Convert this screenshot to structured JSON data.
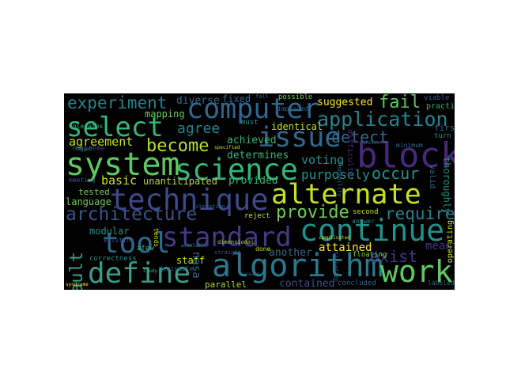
{
  "words": {
    "computer": {
      "text": "computer",
      "color": "#31688e"
    },
    "system": {
      "text": "system",
      "color": "#5ec962"
    },
    "science": {
      "text": "science",
      "color": "#35b779"
    },
    "block": {
      "text": "block",
      "color": "#482878"
    },
    "technique": {
      "text": "technique",
      "color": "#3e4989"
    },
    "alternate": {
      "text": "alternate",
      "color": "#c8e020"
    },
    "standard": {
      "text": "standard",
      "color": "#443983"
    },
    "continue": {
      "text": "continue",
      "color": "#21918c"
    },
    "tool": {
      "text": "tool",
      "color": "#31688e"
    },
    "define": {
      "text": "define",
      "color": "#3b9c8a"
    },
    "algorithm": {
      "text": "algorithm",
      "color": "#2a788e"
    },
    "work": {
      "text": "work",
      "color": "#5ec962"
    },
    "issue": {
      "text": "issue",
      "color": "#31688e"
    },
    "select": {
      "text": "select",
      "color": "#35b779"
    },
    "application": {
      "text": "application",
      "color": "#26828e"
    },
    "experiment": {
      "text": "experiment",
      "color": "#26828e"
    },
    "fail": {
      "text": "fail",
      "color": "#5ec962"
    },
    "become": {
      "text": "become",
      "color": "#b5de2b"
    },
    "architecture": {
      "text": "architecture",
      "color": "#3b528b"
    },
    "provide": {
      "text": "provide",
      "color": "#6ece58"
    },
    "require": {
      "text": "require",
      "color": "#26828e"
    },
    "fault": {
      "text": "fault",
      "color": "#3b9c8a"
    },
    "exist": {
      "text": "exist",
      "color": "#443983"
    },
    "detect": {
      "text": "detect",
      "color": "#31688e"
    },
    "occur": {
      "text": "occur",
      "color": "#21918c"
    },
    "agree": {
      "text": "agree",
      "color": "#26828e"
    },
    "agreement": {
      "text": "agreement",
      "color": "#c8e020"
    },
    "diverse": {
      "text": "diverse",
      "color": "#31688e"
    },
    "fixed": {
      "text": "fixed",
      "color": "#31688e"
    },
    "suggested": {
      "text": "suggested",
      "color": "#fde725"
    },
    "mapping": {
      "text": "mapping",
      "color": "#6ece58"
    },
    "achieved": {
      "text": "achieved",
      "color": "#35b779"
    },
    "determines": {
      "text": "determines",
      "color": "#35b779"
    },
    "voting": {
      "text": "voting",
      "color": "#21918c"
    },
    "purposely": {
      "text": "purposely",
      "color": "#21918c"
    },
    "identical": {
      "text": "identical",
      "color": "#c8e020"
    },
    "basic": {
      "text": "basic",
      "color": "#c8e020"
    },
    "unanticipated": {
      "text": "unanticipated",
      "color": "#addc30"
    },
    "provided": {
      "text": "provided",
      "color": "#35b779"
    },
    "tested": {
      "text": "tested",
      "color": "#6ece58"
    },
    "language": {
      "text": "language",
      "color": "#6ece58"
    },
    "modular": {
      "text": "modular",
      "color": "#21918c"
    },
    "staff": {
      "text": "staff",
      "color": "#c8e020"
    },
    "nasa": {
      "text": "nasa",
      "color": "#31688e"
    },
    "another": {
      "text": "another",
      "color": "#31688e"
    },
    "attained": {
      "text": "attained",
      "color": "#fde725"
    },
    "meant": {
      "text": "meant",
      "color": "#443983"
    },
    "contained": {
      "text": "contained",
      "color": "#3b528b"
    },
    "parallel": {
      "text": "parallel",
      "color": "#addc30"
    },
    "concluded": {
      "text": "concluded",
      "color": "#31688e"
    },
    "correctness": {
      "text": "correctness",
      "color": "#21918c"
    },
    "desirable": {
      "text": "desirable",
      "color": "#31688e"
    },
    "afew": {
      "text": "afew",
      "color": "#35b779"
    },
    "existing": {
      "text": "existing",
      "color": "#3b528b"
    },
    "reject": {
      "text": "reject",
      "color": "#c8e020"
    },
    "second": {
      "text": "second",
      "color": "#c8e020"
    },
    "possible": {
      "text": "possible",
      "color": "#6ece58"
    },
    "improved": {
      "text": "improved",
      "color": "#31688e"
    },
    "practice": {
      "text": "practice",
      "color": "#35b779"
    },
    "viable": {
      "text": "viable",
      "color": "#3b528b"
    },
    "first": {
      "text": "first",
      "color": "#31688e"
    },
    "thoroughly": {
      "text": "thoroughly",
      "color": "#21918c"
    },
    "valid": {
      "text": "valid",
      "color": "#31688e"
    },
    "operating": {
      "text": "operating",
      "color": "#c8e020"
    },
    "floating": {
      "text": "floating",
      "color": "#6ece58"
    },
    "done": {
      "text": "done",
      "color": "#c8e020"
    },
    "extreme": {
      "text": "extreme",
      "color": "#443983"
    },
    "meeting": {
      "text": "meeting",
      "color": "#3b528b"
    },
    "tolerates": {
      "text": "tolerates",
      "color": "#35b779"
    },
    "tends": {
      "text": "tends",
      "color": "#c8e020"
    },
    "minimum": {
      "text": "minimum",
      "color": "#31688e"
    },
    "difficulty": {
      "text": "difficulty",
      "color": "#482878"
    },
    "must": {
      "text": "must",
      "color": "#21918c"
    },
    "answer": {
      "text": "answer",
      "color": "#21918c"
    },
    "turn": {
      "text": "turn",
      "color": "#21918c"
    },
    "labeled": {
      "text": "labeled",
      "color": "#31688e"
    },
    "dimensional": {
      "text": "dimensional",
      "color": "#addc30"
    },
    "straight": {
      "text": "straight",
      "color": "#3b528b"
    },
    "fall": {
      "text": "fall",
      "color": "#31688e"
    },
    "flagged": {
      "text": "flagged",
      "color": "#21918c"
    },
    "specified": {
      "text": "specified",
      "color": "#c8e020"
    },
    "syndrome": {
      "text": "syndrome",
      "color": "#fde725"
    },
    "iteration": {
      "text": "iteration",
      "color": "#31688e"
    },
    "complicated": {
      "text": "complicated",
      "color": "#c8e020"
    },
    "situation": {
      "text": "situation",
      "color": "#31688e"
    },
    "probability": {
      "text": "probability",
      "color": "#31688e"
    },
    "available": {
      "text": "available",
      "color": "#21918c"
    },
    "choice": {
      "text": "choice",
      "color": "#31688e"
    },
    "study": {
      "text": "study",
      "color": "#35b779"
    },
    "create": {
      "text": "create",
      "color": "#31688e"
    }
  }
}
